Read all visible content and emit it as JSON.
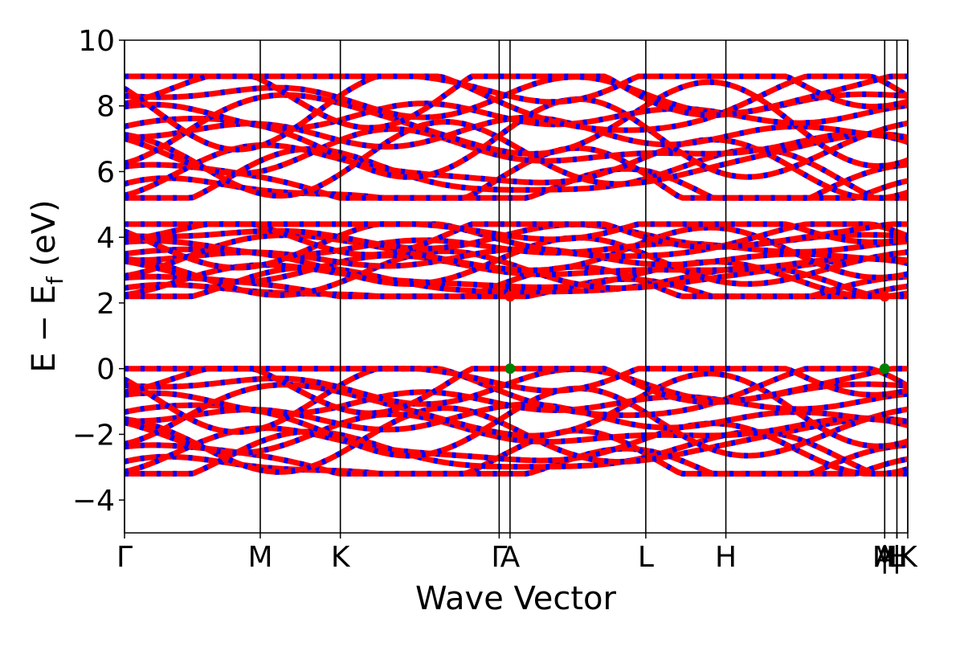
{
  "chart_data": {
    "type": "line",
    "title": "",
    "xlabel": "Wave Vector",
    "ylabel_main": "E − E",
    "ylabel_sub": "f",
    "ylabel_unit": " (eV)",
    "ylim": [
      -5,
      10
    ],
    "yticks": [
      {
        "value": -4,
        "label": "−4"
      },
      {
        "value": -2,
        "label": "−2"
      },
      {
        "value": 0,
        "label": "0"
      },
      {
        "value": 2,
        "label": "2"
      },
      {
        "value": 4,
        "label": "4"
      },
      {
        "value": 6,
        "label": "6"
      },
      {
        "value": 8,
        "label": "8"
      },
      {
        "value": 10,
        "label": "10"
      }
    ],
    "xlim": [
      0,
      5.77
    ],
    "kpoints": [
      {
        "label": "Γ",
        "x": 0.0
      },
      {
        "label": "M",
        "x": 1.0
      },
      {
        "label": "K",
        "x": 1.59
      },
      {
        "label": "Γ",
        "x": 2.76
      },
      {
        "label": "A",
        "x": 2.84
      },
      {
        "label": "L",
        "x": 3.84
      },
      {
        "label": "H",
        "x": 4.43
      },
      {
        "label": "A",
        "x": 5.6
      },
      {
        "label": "M",
        "x": 5.6
      },
      {
        "label": "|",
        "x": 5.6
      },
      {
        "label": "L",
        "x": 5.69
      },
      {
        "label": "H",
        "x": 5.69
      },
      {
        "label": "|",
        "x": 5.69
      },
      {
        "label": "K",
        "x": 5.77
      }
    ],
    "band_groups": [
      {
        "name": "valence",
        "e_min": -3.2,
        "e_max": 0.0
      },
      {
        "name": "conduction_1",
        "e_min": 2.2,
        "e_max": 4.4
      },
      {
        "name": "conduction_2",
        "e_min": 5.2,
        "e_max": 8.9
      }
    ],
    "markers": [
      {
        "kind": "VBM",
        "x": 2.84,
        "y": 0.0,
        "color": "#008000"
      },
      {
        "kind": "VBM",
        "x": 5.6,
        "y": 0.0,
        "color": "#008000"
      },
      {
        "kind": "CBM",
        "x": 2.84,
        "y": 2.2,
        "color": "#ff0000"
      },
      {
        "kind": "CBM",
        "x": 5.6,
        "y": 2.2,
        "color": "#ff0000"
      }
    ],
    "colors": {
      "band_red": "#ff0000",
      "band_blue": "#0000ff",
      "axis": "#000000"
    },
    "grid": false
  }
}
